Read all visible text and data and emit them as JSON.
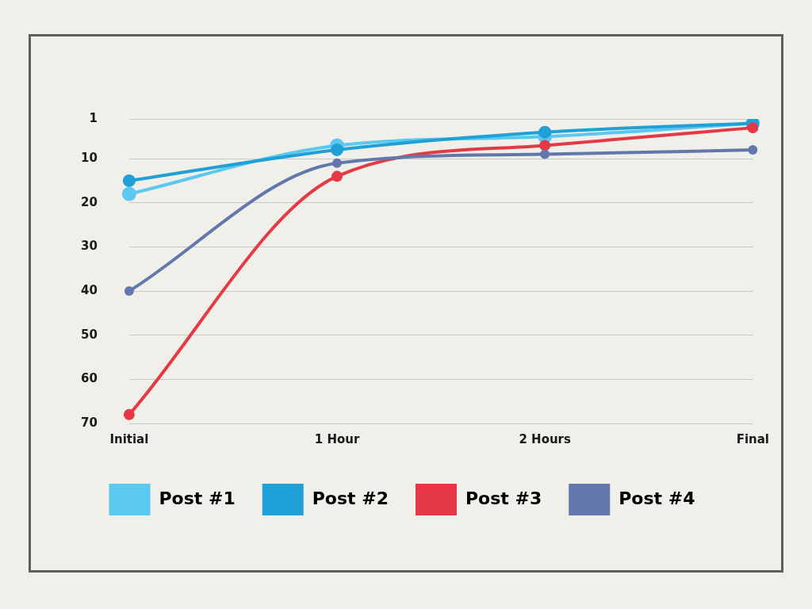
{
  "chart_data": {
    "type": "line",
    "categories": [
      "Initial",
      "1 Hour",
      "2 Hours",
      "Final"
    ],
    "series": [
      {
        "name": "Post #1",
        "color": "#5bc8f0",
        "values": [
          18,
          7,
          5,
          2
        ]
      },
      {
        "name": "Post #2",
        "color": "#1fa0d6",
        "values": [
          15,
          8,
          4,
          2
        ]
      },
      {
        "name": "Post #3",
        "color": "#e63946",
        "values": [
          68,
          14,
          7,
          3
        ]
      },
      {
        "name": "Post #4",
        "color": "#6278ad",
        "values": [
          40,
          11,
          9,
          8
        ]
      }
    ],
    "ylim": [
      70,
      1
    ],
    "yticks": [
      1,
      10,
      20,
      30,
      40,
      50,
      60,
      70
    ],
    "grid": "y",
    "legend": "bottom",
    "marker": "circle",
    "line_style": "solid"
  }
}
